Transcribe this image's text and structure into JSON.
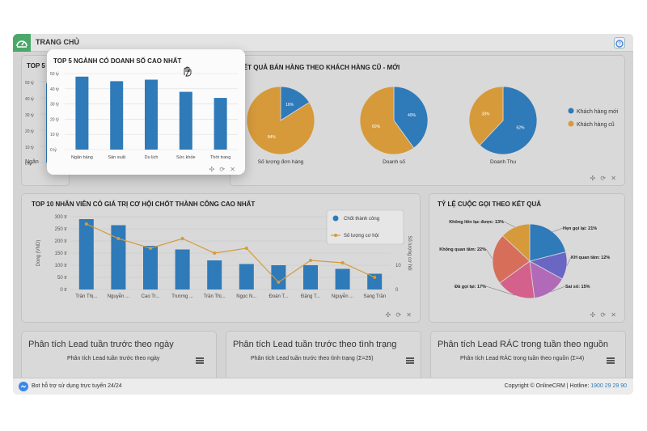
{
  "header": {
    "title": "TRANG CHỦ"
  },
  "panels": {
    "top5_bg_title": "TOP 5 N",
    "top5_bg_ticks": [
      "50 tỷ",
      "40 tỷ",
      "30 tỷ",
      "20 tỷ",
      "10 tỷ",
      "0 tỷ"
    ],
    "top5_bg_cat": "Ngân",
    "sales_title": "KẾT QUẢ BÁN HÀNG THEO KHÁCH HÀNG CŨ - MỚI",
    "top10_title": "TOP 10 NHÂN VIÊN CÓ GIÁ TRỊ CƠ HỘI CHỐT THÀNH CÔNG CAO NHẤT",
    "calls_title": "TỶ LỆ CUỘC GỌI THEO KẾT QUẢ",
    "lead_day_title": "Phân tích Lead tuần trước theo ngày",
    "lead_day_sub": "Phân tích Lead tuần trước theo ngày",
    "lead_status_title": "Phân tích Lead tuần trước theo tình trạng",
    "lead_status_sub": "Phân tích Lead tuần trước theo tình trạng (Σ=25)",
    "lead_junk_title": "Phân tích Lead RÁC trong tuần theo nguồn",
    "lead_junk_sub": "Phân tích Lead RÁC trong tuần theo nguồn (Σ=4)",
    "footer_icons": "✣ ⟳ ✕"
  },
  "statusbar": {
    "bot_text": "Bot hỗ trợ sử dụng trực tuyến 24/24",
    "copyright": "Copyright © OnlineCRM | Hotline:",
    "hotline": "1900 29 29 90"
  },
  "chart_data": [
    {
      "type": "bar",
      "title": "TOP 5 NGÀNH CÓ DOANH SỐ CAO NHẤT",
      "categories": [
        "Ngân hàng",
        "Sản xuất",
        "Du lịch",
        "Sức khỏe",
        "Thời trang"
      ],
      "values": [
        48,
        45,
        46,
        38,
        34
      ],
      "yticks": [
        "50 tỷ",
        "40 tỷ",
        "30 tỷ",
        "20 tỷ",
        "10 tỷ",
        "0 tỷ"
      ],
      "ylim": [
        0,
        50
      ]
    },
    {
      "type": "pie",
      "title": "Số lượng đơn hàng",
      "slices": [
        {
          "label": "Khách hàng mới",
          "value": 16,
          "text": "16%"
        },
        {
          "label": "Khách hàng cũ",
          "value": 84,
          "text": "84%"
        }
      ]
    },
    {
      "type": "pie",
      "title": "Doanh số",
      "slices": [
        {
          "label": "Khách hàng mới",
          "value": 40,
          "text": "40%"
        },
        {
          "label": "Khách hàng cũ",
          "value": 60,
          "text": "60%"
        }
      ]
    },
    {
      "type": "pie",
      "title": "Doanh Thu",
      "slices": [
        {
          "label": "Khách hàng mới",
          "value": 62,
          "text": "62%"
        },
        {
          "label": "Khách hàng cũ",
          "value": 38,
          "text": "38%"
        }
      ],
      "legend": [
        "Khách hàng mới",
        "Khách hàng cũ"
      ],
      "colors": [
        "#2f7ab8",
        "#d69a3a"
      ]
    },
    {
      "type": "bar+line",
      "title": "TOP 10 NHÂN VIÊN CÓ GIÁ TRỊ CƠ HỘI CHỐT THÀNH CÔNG CAO NHẤT",
      "categories": [
        "Trần Thị...",
        "Nguyễn ...",
        "Cao Tr...",
        "Trương ...",
        "Trần Thị...",
        "Ngọc N...",
        "Đoàn T...",
        "Đặng T...",
        "Nguyễn ...",
        "Sang Trần"
      ],
      "series": [
        {
          "name": "Chốt thành công",
          "values": [
            290,
            265,
            180,
            165,
            120,
            105,
            100,
            100,
            85,
            65
          ]
        },
        {
          "name": "Số lượng cơ hội",
          "values": [
            27,
            21,
            17,
            21,
            15,
            17,
            3,
            12,
            11,
            5
          ]
        }
      ],
      "yticks_left": [
        "300 tr",
        "250 tr",
        "200 tr",
        "150 tr",
        "100 tr",
        "50 tr",
        "0 tr"
      ],
      "yticks_right": [
        "30",
        "20",
        "10",
        "0"
      ],
      "ylabel": "Dong (VND)",
      "ylabel_right": "Số lượng cơ hội",
      "ylim": [
        0,
        300
      ],
      "y2lim": [
        0,
        30
      ]
    },
    {
      "type": "pie",
      "title": "TỶ LỆ CUỘC GỌI THEO KẾT QUẢ",
      "slices": [
        {
          "label": "Hẹn gọi lại: 21%",
          "value": 21,
          "color": "#2f7ab8"
        },
        {
          "label": "KH quan tâm: 12%",
          "value": 12,
          "color": "#6a66c4"
        },
        {
          "label": "Sai số: 15%",
          "value": 15,
          "color": "#b06ab8"
        },
        {
          "label": "Đã gọi lại: 17%",
          "value": 17,
          "color": "#d4608c"
        },
        {
          "label": "Không quan tâm: 22%",
          "value": 22,
          "color": "#d66e5a"
        },
        {
          "label": "Không liên lạc được: 13%",
          "value": 13,
          "color": "#d69a3a"
        }
      ]
    }
  ]
}
